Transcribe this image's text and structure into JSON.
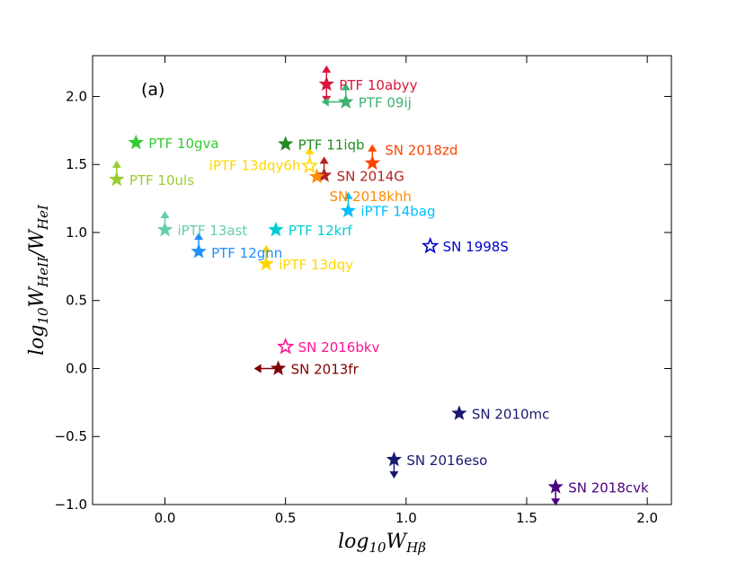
{
  "chart_data": {
    "type": "scatter",
    "panel_label": "(a)",
    "xlabel": "log10 W_Hβ",
    "ylabel": "log10 W_HeII / W_HeI",
    "xlim": [
      -0.3,
      2.1
    ],
    "ylim": [
      -1.0,
      2.3
    ],
    "xticks": [
      "0.0",
      "0.5",
      "1.0",
      "1.5",
      "2.0"
    ],
    "yticks": [
      "−1.0",
      "−0.5",
      "0.0",
      "0.5",
      "1.0",
      "1.5",
      "2.0"
    ],
    "grid": false,
    "points": [
      {
        "label": "PTF 10abyy",
        "x": 0.67,
        "y": 2.09,
        "color": "#dc143c",
        "filled": true,
        "limit": "updown"
      },
      {
        "label": "PTF 09ij",
        "x": 0.75,
        "y": 1.96,
        "color": "#3cb371",
        "filled": true,
        "limit": "up-left"
      },
      {
        "label": "PTF 10gva",
        "x": -0.12,
        "y": 1.66,
        "color": "#32cd32",
        "filled": true,
        "limit": "none"
      },
      {
        "label": "PTF 11iqb",
        "x": 0.5,
        "y": 1.65,
        "color": "#228b22",
        "filled": true,
        "limit": "none"
      },
      {
        "label": "SN 2018zd",
        "x": 0.86,
        "y": 1.51,
        "color": "#ff4500",
        "filled": true,
        "limit": "up"
      },
      {
        "label": "iPTF 13dqy6h",
        "x": 0.6,
        "y": 1.49,
        "color": "#ffd700",
        "filled": false,
        "limit": "up"
      },
      {
        "label": "SN 2014G",
        "x": 0.66,
        "y": 1.42,
        "color": "#b22222",
        "filled": true,
        "limit": "up"
      },
      {
        "label": "SN 2018khh",
        "x": 0.63,
        "y": 1.41,
        "color": "#ff8c00",
        "filled": true,
        "limit": "none"
      },
      {
        "label": "PTF 10uls",
        "x": -0.2,
        "y": 1.39,
        "color": "#9acd32",
        "filled": true,
        "limit": "up"
      },
      {
        "label": "iPTF 14bag",
        "x": 0.76,
        "y": 1.16,
        "color": "#00bfff",
        "filled": true,
        "limit": "up"
      },
      {
        "label": "iPTF 13ast",
        "x": 0.0,
        "y": 1.02,
        "color": "#66cdaa",
        "filled": true,
        "limit": "up"
      },
      {
        "label": "PTF 12krf",
        "x": 0.46,
        "y": 1.02,
        "color": "#00ced1",
        "filled": true,
        "limit": "none"
      },
      {
        "label": "SN 1998S",
        "x": 1.1,
        "y": 0.9,
        "color": "#0000cd",
        "filled": false,
        "limit": "none"
      },
      {
        "label": "PTF 12gnn",
        "x": 0.14,
        "y": 0.86,
        "color": "#1e90ff",
        "filled": true,
        "limit": "up"
      },
      {
        "label": "iPTF 13dqy",
        "x": 0.42,
        "y": 0.77,
        "color": "#ffd700",
        "filled": true,
        "limit": "up"
      },
      {
        "label": "SN 2016bkv",
        "x": 0.5,
        "y": 0.16,
        "color": "#ff1493",
        "filled": false,
        "limit": "none"
      },
      {
        "label": "SN 2013fr",
        "x": 0.47,
        "y": 0.0,
        "color": "#800000",
        "filled": true,
        "limit": "left"
      },
      {
        "label": "SN 2010mc",
        "x": 1.22,
        "y": -0.33,
        "color": "#191970",
        "filled": true,
        "limit": "none"
      },
      {
        "label": "SN 2016eso",
        "x": 0.95,
        "y": -0.67,
        "color": "#191970",
        "filled": true,
        "limit": "down"
      },
      {
        "label": "SN 2018cvk",
        "x": 1.62,
        "y": -0.87,
        "color": "#4b0082",
        "filled": true,
        "limit": "down"
      }
    ]
  }
}
